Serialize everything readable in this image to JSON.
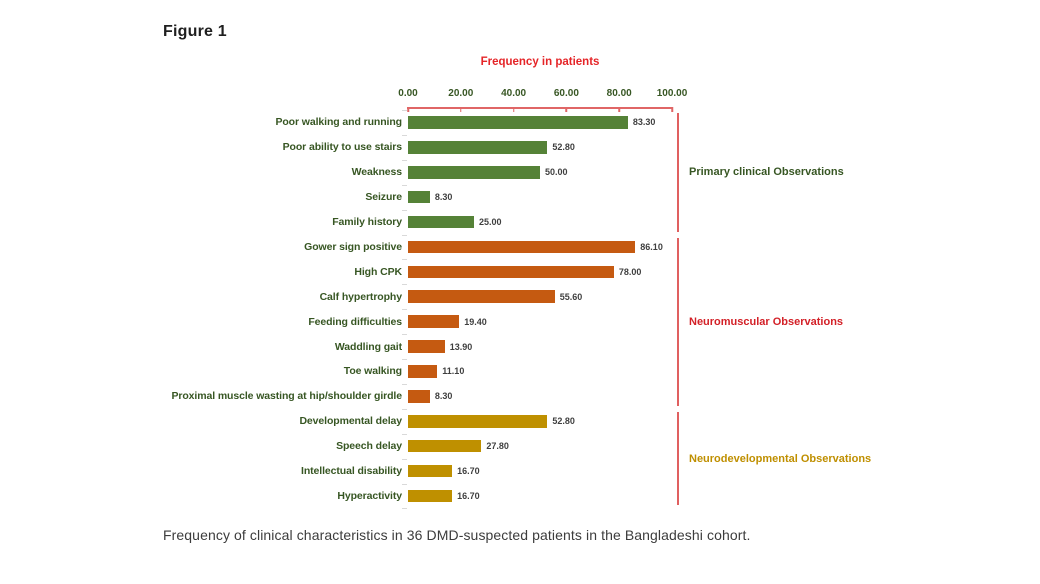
{
  "figure_label": "Figure 1",
  "caption": "Frequency of clinical characteristics in 36 DMD-suspected patients in the Bangladeshi cohort.",
  "chart_data": {
    "type": "bar",
    "orientation": "horizontal",
    "title": "Frequency in patients",
    "title_color": "#e52528",
    "xlabel": "Frequency in patients",
    "ylabel": "",
    "xlim": [
      0,
      100
    ],
    "x_ticks": [
      "0.00",
      "20.00",
      "40.00",
      "60.00",
      "80.00",
      "100.00"
    ],
    "x_tick_values": [
      0,
      20,
      40,
      60,
      80,
      100
    ],
    "axis_color": "#e06666",
    "bracket_color": "#e06060",
    "tick_label_color": "#375623",
    "category_label_color": "#375623",
    "value_label_color": "#3f3f3f",
    "grid": false,
    "legend": false,
    "groups": [
      {
        "label": "Primary clinical Observations",
        "label_color": "#375623",
        "bar_color": "#558237",
        "items": [
          {
            "category": "Poor walking and running",
            "value": 83.3,
            "label": "83.30"
          },
          {
            "category": "Poor ability to use stairs",
            "value": 52.8,
            "label": "52.80"
          },
          {
            "category": "Weakness",
            "value": 50.0,
            "label": "50.00"
          },
          {
            "category": "Seizure",
            "value": 8.3,
            "label": "8.30"
          },
          {
            "category": "Family history",
            "value": 25.0,
            "label": "25.00"
          }
        ]
      },
      {
        "label": "Neuromuscular Observations",
        "label_color": "#d32027",
        "bar_color": "#c55a11",
        "items": [
          {
            "category": "Gower sign positive",
            "value": 86.1,
            "label": "86.10"
          },
          {
            "category": "High CPK",
            "value": 78.0,
            "label": "78.00"
          },
          {
            "category": "Calf hypertrophy",
            "value": 55.6,
            "label": "55.60"
          },
          {
            "category": "Feeding difficulties",
            "value": 19.4,
            "label": "19.40"
          },
          {
            "category": "Waddling gait",
            "value": 13.9,
            "label": "13.90"
          },
          {
            "category": "Toe walking",
            "value": 11.1,
            "label": "11.10"
          },
          {
            "category": "Proximal muscle wasting at hip/shoulder girdle",
            "value": 8.3,
            "label": "8.30"
          }
        ]
      },
      {
        "label": "Neurodevelopmental Observations",
        "label_color": "#bf8f00",
        "bar_color": "#bf9000",
        "items": [
          {
            "category": "Developmental delay",
            "value": 52.8,
            "label": "52.80"
          },
          {
            "category": "Speech delay",
            "value": 27.8,
            "label": "27.80"
          },
          {
            "category": "Intellectual disability",
            "value": 16.7,
            "label": "16.70"
          },
          {
            "category": "Hyperactivity",
            "value": 16.7,
            "label": "16.70"
          }
        ]
      }
    ]
  }
}
